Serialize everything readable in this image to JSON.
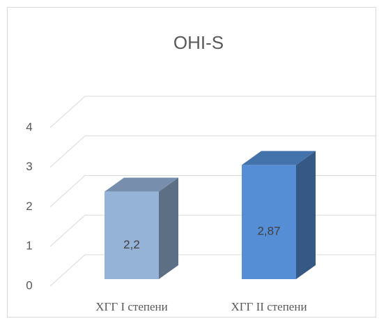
{
  "chart_data": {
    "type": "bar3d",
    "title": "OHI-S",
    "categories": [
      "ХГГ I степени",
      "ХГГ II степени"
    ],
    "values": [
      2.2,
      2.87
    ],
    "value_labels": [
      "2,2",
      "2,87"
    ],
    "colors": [
      "#95b3d7",
      "#558ed5"
    ],
    "ylim": [
      0,
      4
    ],
    "yticks": [
      0,
      1,
      2,
      3,
      4
    ],
    "grid": true
  }
}
